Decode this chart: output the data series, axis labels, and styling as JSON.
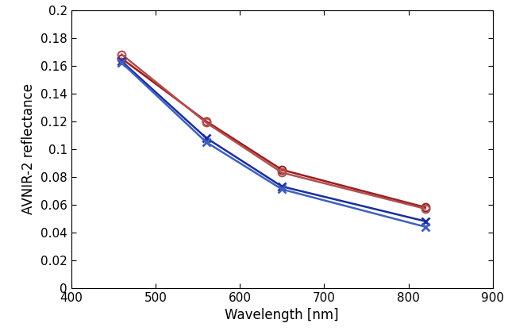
{
  "wavelengths": [
    460,
    560,
    650,
    820
  ],
  "red_series": [
    [
      0.165,
      0.12,
      0.085,
      0.058
    ],
    [
      0.168,
      0.119,
      0.083,
      0.057
    ]
  ],
  "blue_series": [
    [
      0.163,
      0.108,
      0.073,
      0.048
    ],
    [
      0.162,
      0.105,
      0.071,
      0.044
    ]
  ],
  "red_color1": "#9B1C1C",
  "red_color2": "#B05050",
  "blue_color1": "#1A2E9E",
  "blue_color2": "#4060C0",
  "xlabel": "Wavelength [nm]",
  "ylabel": "AVNIR-2 reflectance",
  "xlim": [
    400,
    900
  ],
  "ylim": [
    0,
    0.2
  ],
  "xticks": [
    400,
    500,
    600,
    700,
    800,
    900
  ],
  "ytick_values": [
    0,
    0.02,
    0.04,
    0.06,
    0.08,
    0.1,
    0.12,
    0.14,
    0.16,
    0.18,
    0.2
  ],
  "ytick_labels": [
    "0",
    "0.02",
    "0.04",
    "0.06",
    "0.08",
    "0.1",
    "0.12",
    "0.14",
    "0.16",
    "0.18",
    "0.2"
  ]
}
